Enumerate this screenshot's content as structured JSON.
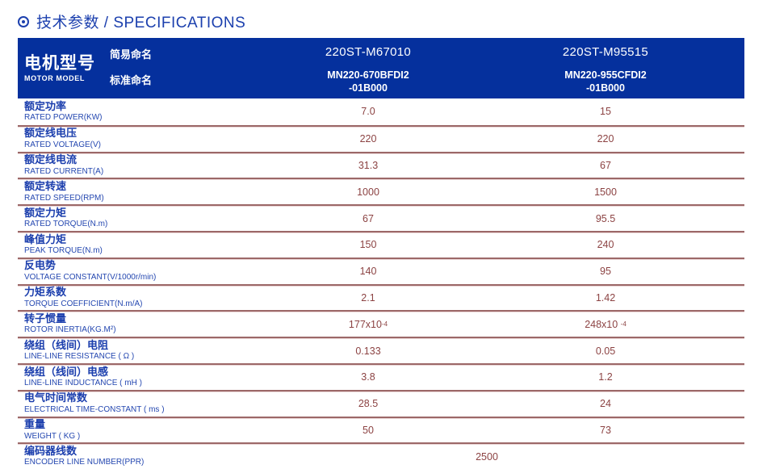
{
  "title": "技术参数 / SPECIFICATIONS",
  "icons": {
    "title_bullet": "circled-dot-icon"
  },
  "colors": {
    "header_bg": "#05309d",
    "title_blue": "#1c40ae",
    "label_blue": "#1b3ead",
    "value_maroon": "#8c4343",
    "divider_dark": "#9c6868",
    "divider_light": "#ead6d6"
  },
  "header": {
    "row_label_cn": "电机型号",
    "row_label_en": "MOTOR MODEL",
    "simple_label": "简易命名",
    "standard_label": "标准命名",
    "columns": [
      {
        "simple": "220ST-M67010",
        "standard_line1": "MN220-670BFDI2",
        "standard_line2": "-01B000"
      },
      {
        "simple": "220ST-M95515",
        "standard_line1": "MN220-955CFDI2",
        "standard_line2": "-01B000"
      }
    ]
  },
  "rows": [
    {
      "cn": "额定功率",
      "en": "RATED POWER(KW)",
      "v1": "7.0",
      "v2": "15"
    },
    {
      "cn": "额定线电压",
      "en": "RATED VOLTAGE(V)",
      "v1": "220",
      "v2": "220"
    },
    {
      "cn": "额定线电流",
      "en": "RATED CURRENT(A)",
      "v1": "31.3",
      "v2": "67"
    },
    {
      "cn": "额定转速",
      "en": "RATED SPEED(RPM)",
      "v1": "1000",
      "v2": "1500"
    },
    {
      "cn": "额定力矩",
      "en": "RATED TORQUE(N.m)",
      "v1": "67",
      "v2": "95.5"
    },
    {
      "cn": "峰值力矩",
      "en": "PEAK TORQUE(N.m)",
      "v1": "150",
      "v2": "240"
    },
    {
      "cn": "反电势",
      "en": "VOLTAGE CONSTANT(V/1000r/min)",
      "v1": "140",
      "v2": "95"
    },
    {
      "cn": "力矩系数",
      "en": "TORQUE COEFFICIENT(N.m/A)",
      "v1": "2.1",
      "v2": "1.42"
    },
    {
      "cn": "转子惯量",
      "en": "ROTOR INERTIA(KG.M²)",
      "v1": "177x10",
      "v1sup": "-4",
      "v2": "248x10 ",
      "v2sup": "-4"
    },
    {
      "cn": "绕组（线间）电阻",
      "en": "LINE-LINE RESISTANCE ( Ω )",
      "v1": "0.133",
      "v2": "0.05"
    },
    {
      "cn": "绕组（线间）电感",
      "en": "LINE-LINE INDUCTANCE ( mH )",
      "v1": "3.8",
      "v2": "1.2"
    },
    {
      "cn": "电气时间常数",
      "en": "ELECTRICAL TIME-CONSTANT ( ms )",
      "v1": "28.5",
      "v2": "24"
    },
    {
      "cn": "重量",
      "en": "WEIGHT ( KG )",
      "v1": "50",
      "v2": "73"
    },
    {
      "cn": "编码器线数",
      "en": "ENCODER LINE NUMBER(PPR)",
      "vspan": "2500"
    }
  ]
}
